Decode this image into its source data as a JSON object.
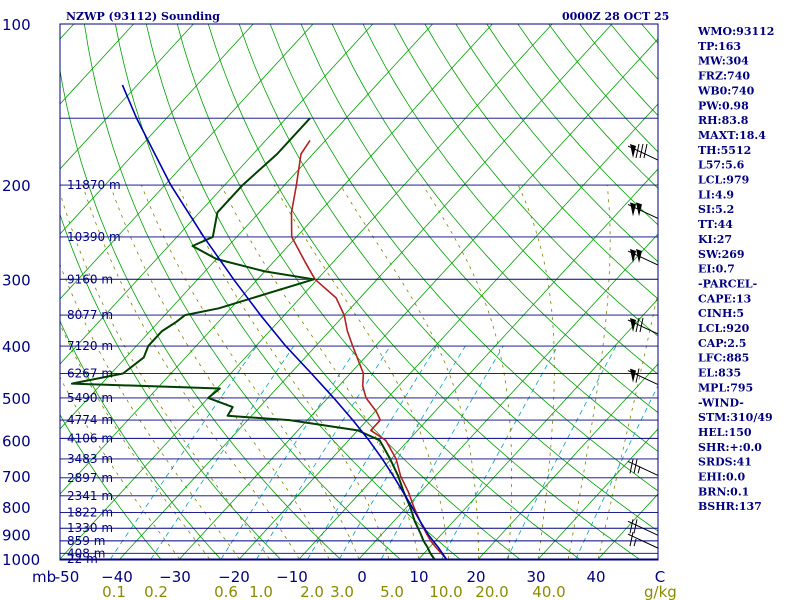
{
  "chart_data": {
    "type": "line",
    "title_left": "NZWP (93112) Sounding",
    "title_right": "0000Z 28 OCT 25",
    "y_axis": {
      "scale": "log",
      "range_hPa": [
        1000,
        100
      ],
      "unit_label": "mb"
    },
    "x_axis": {
      "range_C": [
        -50,
        50
      ],
      "skew": true
    },
    "pressure_ticks": [
      100,
      200,
      300,
      400,
      500,
      600,
      700,
      800,
      900,
      1000
    ],
    "pressure_tick_labels": [
      "100",
      "200",
      "300",
      "400",
      "500",
      "600",
      "700",
      "800",
      "900",
      "1000"
    ],
    "temperature_ticks": [
      -50,
      -40,
      -30,
      -20,
      -10,
      0,
      10,
      20,
      30,
      40
    ],
    "temperature_tick_labels": [
      "-50",
      "−40",
      "−30",
      "−20",
      "−10",
      "0",
      "10",
      "20",
      "30",
      "40"
    ],
    "temperature_axis_end_label": "C",
    "mixing_ratio_labels": [
      "0.1",
      "0.2",
      "0.6",
      "1.0",
      "2.0",
      "3.0",
      "5.0",
      "10.0",
      "20.0",
      "40.0"
    ],
    "mixing_ratio_unit": "g/kg",
    "height_labels": [
      {
        "p": 1000,
        "text": "22 m"
      },
      {
        "p": 976,
        "text": "408 m"
      },
      {
        "p": 925,
        "text": "859 m"
      },
      {
        "p": 876,
        "text": "1330 m"
      },
      {
        "p": 819,
        "text": "1822 m"
      },
      {
        "p": 762,
        "text": "2341 m"
      },
      {
        "p": 705,
        "text": "2897 m"
      },
      {
        "p": 650,
        "text": "3483 m"
      },
      {
        "p": 595,
        "text": "4106 m"
      },
      {
        "p": 550,
        "text": "4774 m"
      },
      {
        "p": 500,
        "text": "5490 m"
      },
      {
        "p": 450,
        "text": "6267 m"
      },
      {
        "p": 400,
        "text": "7120 m"
      },
      {
        "p": 350,
        "text": "8077 m"
      },
      {
        "p": 300,
        "text": "9160 m"
      },
      {
        "p": 250,
        "text": "10390 m"
      },
      {
        "p": 200,
        "text": "11870 m"
      }
    ],
    "series": [
      {
        "name": "Temperature",
        "color": "#b22222",
        "p": [
          1000,
          975,
          950,
          925,
          900,
          870,
          850,
          800,
          750,
          700,
          650,
          600,
          575,
          550,
          530,
          500,
          475,
          450,
          400,
          375,
          350,
          325,
          300,
          280,
          250,
          225,
          200,
          175,
          165
        ],
        "t": [
          14.6,
          12.8,
          11.0,
          9.2,
          7.6,
          5.7,
          4.4,
          1.2,
          -2.0,
          -5.8,
          -9.2,
          -13.8,
          -17.8,
          -17.8,
          -19.8,
          -23.6,
          -26.0,
          -27.8,
          -33.8,
          -37.0,
          -40.0,
          -44.0,
          -50.4,
          -54.4,
          -60.8,
          -64.6,
          -68.0,
          -72.0,
          -72.6
        ]
      },
      {
        "name": "Dewpoint",
        "color": "#004000",
        "p": [
          1000,
          975,
          950,
          925,
          900,
          850,
          800,
          750,
          700,
          650,
          600,
          575,
          550,
          540,
          520,
          500,
          480,
          470,
          450,
          420,
          400,
          375,
          360,
          350,
          340,
          300,
          290,
          275,
          260,
          250,
          225,
          200,
          175,
          150
        ],
        "t": [
          12.6,
          11.0,
          9.6,
          8.0,
          6.6,
          3.5,
          0.6,
          -2.8,
          -6.2,
          -10.2,
          -14.8,
          -20.0,
          -33.0,
          -44.0,
          -44.5,
          -50.0,
          -49.5,
          -75.0,
          -68.0,
          -67.0,
          -68.0,
          -68.0,
          -67.0,
          -66.6,
          -62.0,
          -50.6,
          -60.0,
          -70.0,
          -76.0,
          -74.0,
          -77.0,
          -77.0,
          -76.0,
          -76.0
        ]
      },
      {
        "name": "Parcel",
        "color": "#0000b0",
        "p": [
          1000,
          975,
          950,
          925,
          900,
          850,
          800,
          750,
          700,
          650,
          600,
          550,
          500,
          450,
          400,
          350,
          300,
          250,
          200,
          150,
          130
        ],
        "t": [
          14.6,
          13.0,
          11.4,
          9.6,
          7.8,
          4.4,
          0.9,
          -2.9,
          -7.0,
          -11.5,
          -16.6,
          -22.4,
          -29.0,
          -36.5,
          -45.0,
          -54.0,
          -64.0,
          -75.5,
          -89.0,
          -105.0,
          -112.5
        ]
      }
    ],
    "wind_barbs": [
      {
        "p": 175,
        "speed_kt": 80
      },
      {
        "p": 225,
        "speed_kt": 100
      },
      {
        "p": 275,
        "speed_kt": 100
      },
      {
        "p": 370,
        "speed_kt": 70
      },
      {
        "p": 460,
        "speed_kt": 60
      },
      {
        "p": 680,
        "speed_kt": 25
      },
      {
        "p": 880,
        "speed_kt": 20
      },
      {
        "p": 930,
        "speed_kt": 15
      }
    ],
    "indices": [
      "WMO:93112",
      "TP:163",
      "MW:304",
      "FRZ:740",
      "WB0:740",
      "PW:0.98",
      "RH:83.8",
      "MAXT:18.4",
      "TH:5512",
      "L57:5.6",
      "LCL:979",
      "LI:4.9",
      "SI:5.2",
      "TT:44",
      "KI:27",
      "SW:269",
      "EI:0.7",
      "-PARCEL-",
      "CAPE:13",
      "CINH:5",
      "LCL:920",
      "CAP:2.5",
      "LFC:885",
      "EL:835",
      "MPL:795",
      "-WIND-",
      "STM:310/49",
      "HEL:150",
      "SHR:+:0.0",
      "SRDS:41",
      "EHI:0.0",
      "BRN:0.1",
      "BSHR:137"
    ],
    "colors": {
      "axes": "#000080",
      "dry_adiabat": "#00a000",
      "moist_adiabat": "#808000",
      "mixing_ratio": "#00a0c0",
      "isotherm": "#00a000",
      "text": "#000080",
      "mixing_ratio_text": "#8b8b00"
    },
    "grid": true
  }
}
